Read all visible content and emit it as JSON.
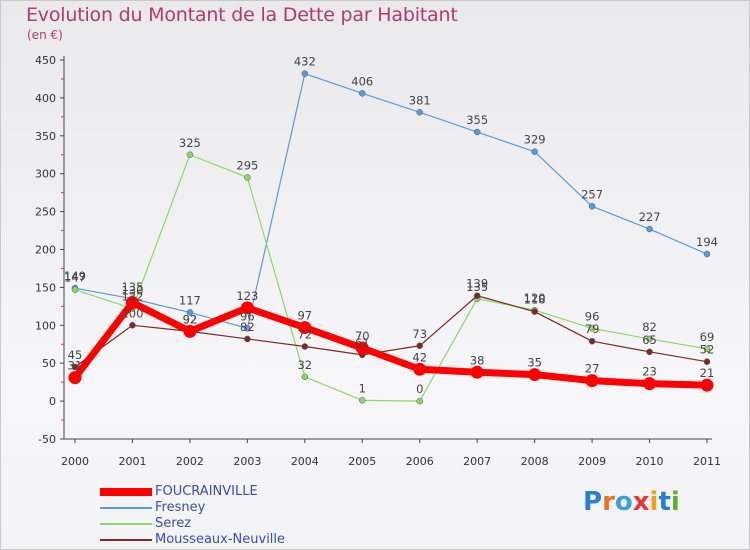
{
  "title": "Evolution du Montant de la Dette par Habitant",
  "unit": "(en €)",
  "logo": "Proxiti",
  "chart_data": {
    "type": "line",
    "x": [
      "2000",
      "2001",
      "2002",
      "2003",
      "2004",
      "2005",
      "2006",
      "2007",
      "2008",
      "2009",
      "2010",
      "2011"
    ],
    "ylim": [
      -50,
      450
    ],
    "yticks": [
      -50,
      0,
      50,
      100,
      150,
      200,
      250,
      300,
      350,
      400,
      450
    ],
    "grid": false,
    "legend": "bottom-left",
    "series": [
      {
        "name": "FOUCRAINVILLE",
        "color": "#ff0000",
        "width": 7,
        "values": [
          31,
          130,
          92,
          123,
          97,
          70,
          42,
          38,
          35,
          27,
          23,
          21
        ],
        "labels": [
          31,
          130,
          92,
          123,
          97,
          70,
          42,
          38,
          35,
          27,
          23,
          21
        ]
      },
      {
        "name": "Fresney",
        "color": "#5b9bd5",
        "width": 1.2,
        "values": [
          149,
          135,
          117,
          96,
          432,
          406,
          381,
          355,
          329,
          257,
          227,
          194
        ],
        "labels": [
          149,
          135,
          117,
          96,
          432,
          406,
          381,
          355,
          329,
          257,
          227,
          194
        ]
      },
      {
        "name": "Serez",
        "color": "#8fd66a",
        "width": 1.2,
        "values": [
          147,
          122,
          325,
          295,
          32,
          1,
          0,
          135,
          120,
          96,
          82,
          69
        ],
        "labels": [
          147,
          122,
          325,
          295,
          32,
          1,
          0,
          135,
          120,
          96,
          82,
          69
        ]
      },
      {
        "name": "Mousseaux-Neuville",
        "color": "#7a2a2a",
        "width": 1.2,
        "values": [
          45,
          100,
          92,
          82,
          72,
          61,
          73,
          139,
          118,
          79,
          65,
          52
        ],
        "labels": [
          45,
          100,
          92,
          82,
          72,
          61,
          73,
          139,
          118,
          79,
          65,
          52
        ]
      }
    ]
  }
}
